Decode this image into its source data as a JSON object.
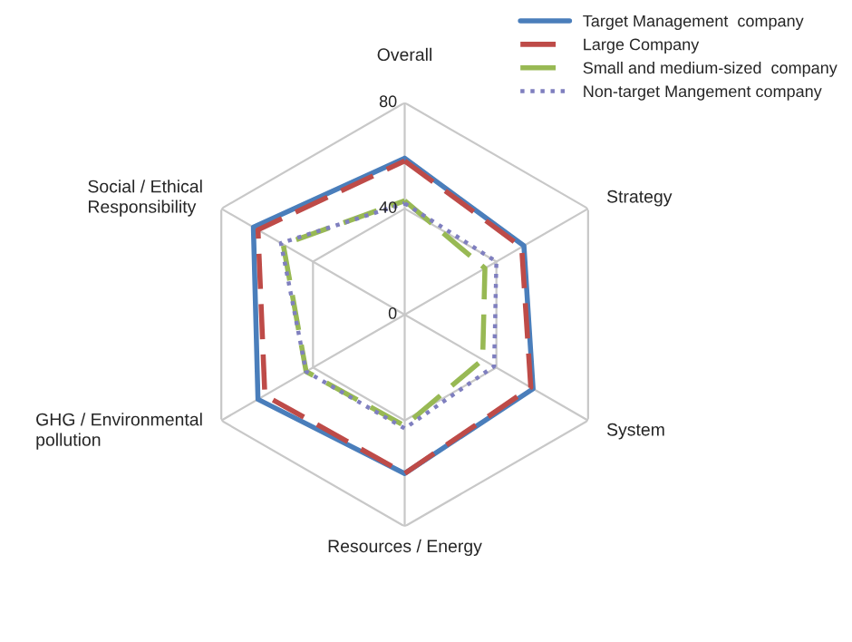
{
  "chart_data": {
    "type": "radar",
    "categories": [
      "Overall",
      "Strategy",
      "System",
      "Resources / Energy",
      "GHG / Environmental\npollution",
      "Social / Ethical\nResponsibility"
    ],
    "ylim": [
      0,
      80
    ],
    "yticks": [
      0,
      40,
      80
    ],
    "grid": true,
    "legend": "top right",
    "marker": "none",
    "series": [
      {
        "name": "Target Management  company",
        "color": "#4a7ebb",
        "line_style": "solid",
        "values": [
          59,
          52,
          56,
          60,
          64,
          66
        ]
      },
      {
        "name": "Large Company",
        "color": "#be4b48",
        "line_style": "dashed",
        "values": [
          58,
          51,
          55,
          60,
          61,
          64
        ]
      },
      {
        "name": "Small and medium-sized  company",
        "color": "#98b954",
        "line_style": "dashed",
        "values": [
          43,
          35,
          34,
          42,
          43,
          53
        ]
      },
      {
        "name": "Non-target Mangement company",
        "color": "#7f7fbf",
        "line_style": "dotted",
        "values": [
          42,
          40,
          39,
          43,
          43,
          54
        ]
      }
    ]
  }
}
